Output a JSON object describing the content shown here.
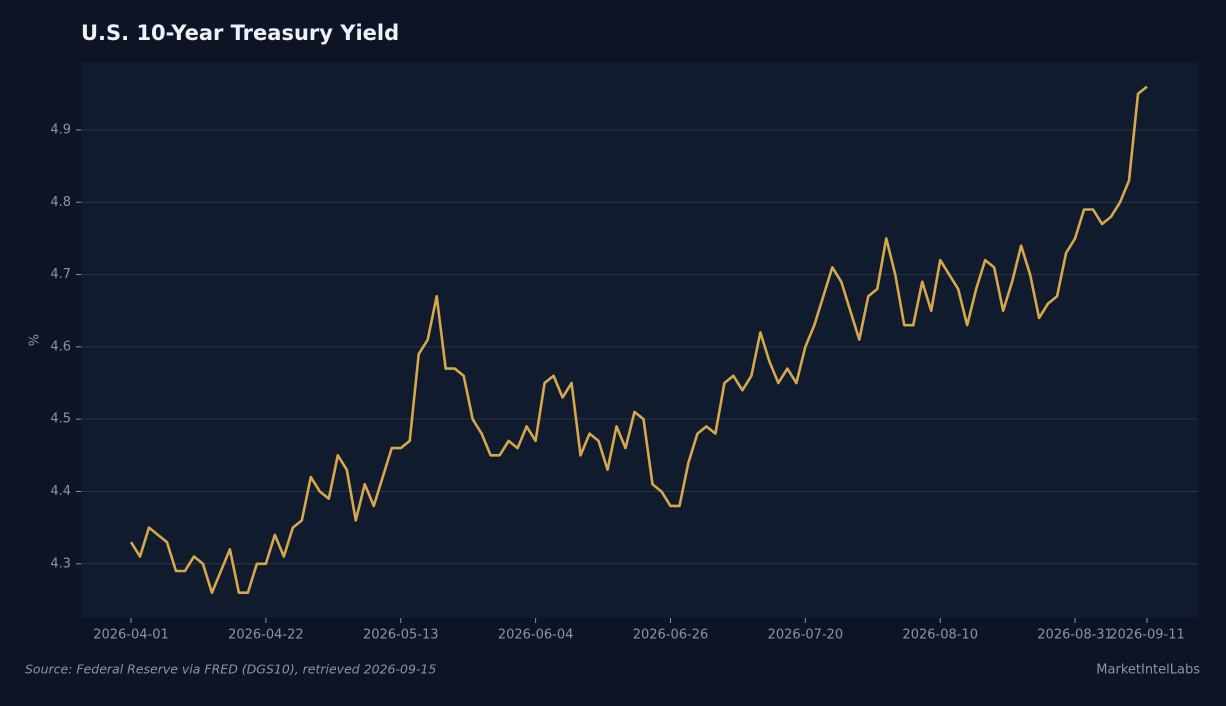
{
  "chart_data": {
    "type": "line",
    "title": "U.S. 10-Year Treasury Yield",
    "y_label": "%",
    "source": "Source: Federal Reserve via FRED (DGS10), retrieved 2026-09-15",
    "brand": "MarketIntelLabs",
    "color": "#d4a84b",
    "grid": true,
    "categories": [
      "2026-04-01",
      null,
      null,
      null,
      null,
      null,
      null,
      null,
      null,
      null,
      null,
      null,
      null,
      null,
      null,
      "2026-04-22",
      null,
      null,
      null,
      null,
      null,
      null,
      null,
      null,
      null,
      null,
      null,
      null,
      null,
      null,
      "2026-05-13",
      null,
      null,
      null,
      null,
      null,
      null,
      null,
      null,
      null,
      null,
      null,
      null,
      null,
      null,
      "2026-06-04",
      null,
      null,
      null,
      null,
      null,
      null,
      null,
      null,
      null,
      null,
      null,
      null,
      null,
      null,
      "2026-06-26",
      null,
      null,
      null,
      null,
      null,
      null,
      null,
      null,
      null,
      null,
      null,
      null,
      null,
      null,
      "2026-07-20",
      null,
      null,
      null,
      null,
      null,
      null,
      null,
      null,
      null,
      null,
      null,
      null,
      null,
      null,
      "2026-08-10",
      null,
      null,
      null,
      null,
      null,
      null,
      null,
      null,
      null,
      null,
      null,
      null,
      null,
      null,
      "2026-08-31",
      null,
      null,
      null,
      null,
      null,
      null,
      null,
      "2026-09-11"
    ],
    "values": [
      4.33,
      4.31,
      4.35,
      4.34,
      4.33,
      4.29,
      4.29,
      4.31,
      4.3,
      4.26,
      4.29,
      4.32,
      4.26,
      4.26,
      4.3,
      4.3,
      4.34,
      4.31,
      4.35,
      4.36,
      4.42,
      4.4,
      4.39,
      4.45,
      4.43,
      4.36,
      4.41,
      4.38,
      4.42,
      4.46,
      4.46,
      4.47,
      4.59,
      4.61,
      4.67,
      4.57,
      4.57,
      4.56,
      4.5,
      4.48,
      4.45,
      4.45,
      4.47,
      4.46,
      4.49,
      4.47,
      4.55,
      4.56,
      4.53,
      4.55,
      4.45,
      4.48,
      4.47,
      4.43,
      4.49,
      4.46,
      4.51,
      4.5,
      4.41,
      4.4,
      4.38,
      4.38,
      4.44,
      4.48,
      4.49,
      4.48,
      4.55,
      4.56,
      4.54,
      4.56,
      4.62,
      4.58,
      4.55,
      4.57,
      4.55,
      4.6,
      4.63,
      4.67,
      4.71,
      4.69,
      4.65,
      4.61,
      4.67,
      4.68,
      4.75,
      4.7,
      4.63,
      4.63,
      4.69,
      4.65,
      4.72,
      4.7,
      4.68,
      4.63,
      4.68,
      4.72,
      4.71,
      4.65,
      4.69,
      4.74,
      4.7,
      4.64,
      4.66,
      4.67,
      4.73,
      4.75,
      4.79,
      4.79,
      4.77,
      4.78,
      4.8,
      4.83,
      4.95,
      4.96
    ],
    "ylim": [
      4.225,
      4.994
    ],
    "yticks": [
      4.3,
      4.4,
      4.5,
      4.6,
      4.7,
      4.8,
      4.9
    ]
  }
}
